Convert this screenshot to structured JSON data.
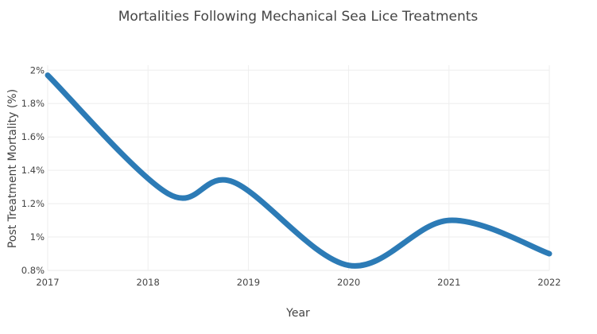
{
  "chart_data": {
    "type": "line",
    "title": "Mortalities Following Mechanical Sea Lice Treatments",
    "xlabel": "Year",
    "ylabel": "Post Treatment Mortality (%)",
    "x": [
      2017,
      2018.2,
      2018.85,
      2020,
      2021,
      2022
    ],
    "x_ticks": [
      2017,
      2018,
      2019,
      2020,
      2021,
      2022
    ],
    "x_tick_labels": [
      "2017",
      "2018",
      "2019",
      "2020",
      "2021",
      "2022"
    ],
    "y_ticks": [
      0.8,
      1.0,
      1.2,
      1.4,
      1.6,
      1.8,
      2.0
    ],
    "y_tick_labels": [
      "0.8%",
      "1%",
      "1.2%",
      "1.4%",
      "1.6%",
      "1.8%",
      "2%"
    ],
    "xlim": [
      2017,
      2022
    ],
    "ylim": [
      0.8,
      2.03
    ],
    "grid": true,
    "series": [
      {
        "name": "Post Treatment Mortality",
        "color": "#2c7bb6",
        "x": [
          2017,
          2018.2,
          2018.85,
          2020,
          2021,
          2022
        ],
        "values": [
          1.97,
          1.26,
          1.33,
          0.83,
          1.1,
          0.9
        ]
      }
    ]
  }
}
